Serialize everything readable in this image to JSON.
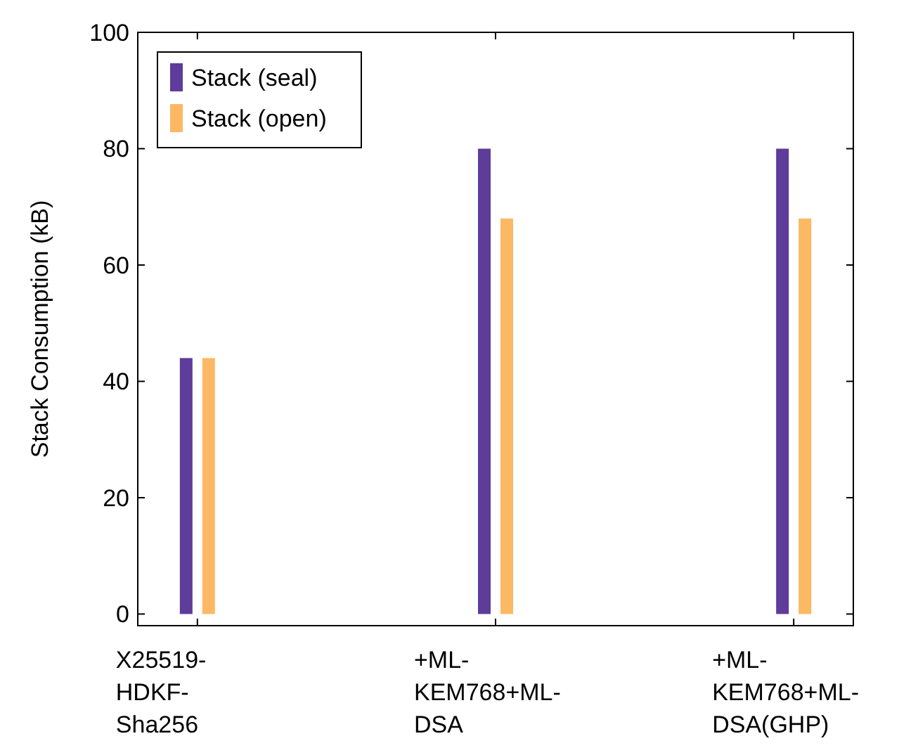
{
  "chart_data": {
    "type": "bar",
    "ylabel": "Stack Consumption (kB)",
    "categories": [
      "X25519-HDKF-Sha256",
      "+ML-KEM768+ML-DSA",
      "+ML-KEM768+ML-DSA(GHP)"
    ],
    "series": [
      {
        "name": "Stack (seal)",
        "color": "#5e3c99",
        "values": [
          44,
          80,
          80
        ]
      },
      {
        "name": "Stack (open)",
        "color": "#fdb863",
        "values": [
          44,
          68,
          68
        ]
      }
    ],
    "ylim": [
      -2,
      100
    ],
    "yticks": [
      0,
      20,
      40,
      60,
      80,
      100
    ],
    "grid": false,
    "legend": "top left"
  }
}
